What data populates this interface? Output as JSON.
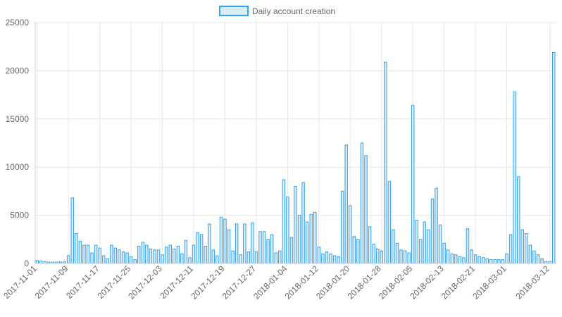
{
  "chart_data": {
    "type": "bar",
    "legend": {
      "position": "top",
      "series_name": "Daily account creation",
      "color": "#36a2eb"
    },
    "colors": {
      "bar_fill": "#d7ecfb",
      "bar_border": "#36a2eb",
      "grid": "#e6e6e6",
      "tick_text": "#666666"
    },
    "grid": true,
    "ylim": [
      0,
      25000
    ],
    "yticks": [
      0,
      5000,
      10000,
      15000,
      20000,
      25000
    ],
    "xlabels": [
      "2017-11-01",
      "2017-11-09",
      "2017-11-17",
      "2017-11-25",
      "2017-12-03",
      "2017-12-11",
      "2017-12-19",
      "2017-12-27",
      "2018-01-04",
      "2018-01-12",
      "2018-01-20",
      "2018-01-28",
      "2018-02-05",
      "2018-02-13",
      "2018-02-21",
      "2018-03-01",
      "2018-03-12"
    ],
    "x_start": "2017-11-01",
    "x_end": "2018-03-12",
    "series": [
      {
        "name": "Daily account creation",
        "values": [
          300,
          250,
          200,
          150,
          150,
          150,
          150,
          200,
          800,
          6800,
          3100,
          2300,
          1900,
          1900,
          1100,
          1900,
          1600,
          800,
          500,
          1900,
          1600,
          1400,
          1200,
          1100,
          700,
          400,
          1800,
          2200,
          1900,
          1500,
          1400,
          1400,
          900,
          1700,
          1900,
          1500,
          1800,
          1000,
          2400,
          600,
          1900,
          3200,
          3000,
          1800,
          4100,
          1400,
          800,
          4800,
          4600,
          3500,
          1300,
          4100,
          900,
          4100,
          1200,
          4200,
          1200,
          3300,
          3300,
          2500,
          3000,
          1100,
          1300,
          8700,
          6900,
          2700,
          8000,
          5000,
          8400,
          4300,
          5100,
          5300,
          1700,
          1000,
          1200,
          1000,
          800,
          700,
          7500,
          12300,
          6000,
          2800,
          2500,
          12500,
          11200,
          3800,
          2000,
          1500,
          1300,
          20900,
          8500,
          3500,
          2100,
          1400,
          1300,
          1100,
          16400,
          4500,
          2500,
          4300,
          3500,
          6700,
          7800,
          4000,
          2100,
          1400,
          1000,
          900,
          700,
          600,
          3600,
          1400,
          900,
          700,
          600,
          500,
          400,
          400,
          400,
          400,
          1000,
          3000,
          17800,
          9000,
          3500,
          3100,
          1900,
          1300,
          900,
          500,
          200,
          200,
          21900
        ]
      }
    ]
  }
}
